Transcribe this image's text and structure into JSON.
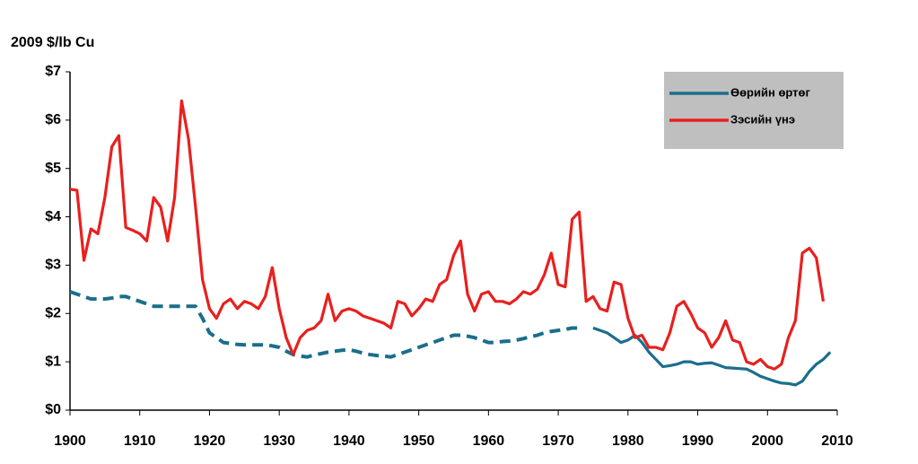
{
  "chart_data": {
    "type": "line",
    "title": "2009 $/lb Cu",
    "x": [
      1900,
      1901,
      1902,
      1903,
      1904,
      1905,
      1906,
      1907,
      1908,
      1909,
      1910,
      1911,
      1912,
      1913,
      1914,
      1915,
      1916,
      1917,
      1918,
      1919,
      1920,
      1921,
      1922,
      1923,
      1924,
      1925,
      1926,
      1927,
      1928,
      1929,
      1930,
      1931,
      1932,
      1933,
      1934,
      1935,
      1936,
      1937,
      1938,
      1939,
      1940,
      1941,
      1942,
      1943,
      1944,
      1945,
      1946,
      1947,
      1948,
      1949,
      1950,
      1951,
      1952,
      1953,
      1954,
      1955,
      1956,
      1957,
      1958,
      1959,
      1960,
      1961,
      1962,
      1963,
      1964,
      1965,
      1966,
      1967,
      1968,
      1969,
      1970,
      1971,
      1972,
      1973,
      1974,
      1975,
      1976,
      1977,
      1978,
      1979,
      1980,
      1981,
      1982,
      1983,
      1984,
      1985,
      1986,
      1987,
      1988,
      1989,
      1990,
      1991,
      1992,
      1993,
      1994,
      1995,
      1996,
      1997,
      1998,
      1999,
      2000,
      2001,
      2002,
      2003,
      2004,
      2005,
      2006,
      2007,
      2008,
      2009
    ],
    "series": [
      {
        "name": "Өөрийн өртөг",
        "color": "#1b6e8c",
        "dashed_until": 1973,
        "values": [
          2.45,
          2.4,
          2.35,
          2.3,
          2.3,
          2.3,
          2.32,
          2.35,
          2.35,
          2.3,
          2.25,
          2.2,
          2.15,
          2.15,
          2.15,
          2.15,
          2.15,
          2.15,
          2.15,
          1.9,
          1.6,
          1.5,
          1.4,
          1.38,
          1.36,
          1.35,
          1.35,
          1.35,
          1.35,
          1.33,
          1.3,
          1.22,
          1.15,
          1.12,
          1.1,
          1.14,
          1.17,
          1.2,
          1.22,
          1.24,
          1.25,
          1.22,
          1.18,
          1.15,
          1.13,
          1.12,
          1.1,
          1.15,
          1.2,
          1.25,
          1.3,
          1.35,
          1.4,
          1.45,
          1.5,
          1.55,
          1.55,
          1.53,
          1.5,
          1.45,
          1.4,
          1.4,
          1.42,
          1.43,
          1.45,
          1.48,
          1.52,
          1.55,
          1.6,
          1.63,
          1.65,
          1.67,
          1.7,
          1.7,
          null,
          1.7,
          1.65,
          1.6,
          1.5,
          1.4,
          1.45,
          1.55,
          1.4,
          1.2,
          1.05,
          0.9,
          0.92,
          0.95,
          1.0,
          1.0,
          0.95,
          0.97,
          0.98,
          0.93,
          0.88,
          0.87,
          0.86,
          0.85,
          0.78,
          0.7,
          0.65,
          0.6,
          0.56,
          0.55,
          0.52,
          0.6,
          0.8,
          0.95,
          1.05,
          1.2
        ]
      },
      {
        "name": "Зэсийн үнэ",
        "color": "#e8201e",
        "values": [
          4.57,
          4.55,
          3.1,
          3.75,
          3.65,
          4.4,
          5.45,
          5.68,
          3.78,
          3.72,
          3.65,
          3.5,
          4.4,
          4.2,
          3.5,
          4.4,
          6.4,
          5.6,
          4.2,
          2.7,
          2.1,
          1.9,
          2.2,
          2.3,
          2.1,
          2.25,
          2.2,
          2.1,
          2.35,
          2.95,
          2.1,
          1.5,
          1.15,
          1.5,
          1.65,
          1.7,
          1.85,
          2.4,
          1.85,
          2.05,
          2.1,
          2.05,
          1.95,
          1.9,
          1.85,
          1.8,
          1.7,
          2.25,
          2.2,
          1.95,
          2.1,
          2.3,
          2.25,
          2.6,
          2.7,
          3.2,
          3.5,
          2.4,
          2.05,
          2.4,
          2.45,
          2.25,
          2.25,
          2.2,
          2.3,
          2.45,
          2.4,
          2.5,
          2.8,
          3.25,
          2.6,
          2.55,
          3.95,
          4.1,
          2.25,
          2.35,
          2.1,
          2.05,
          2.65,
          2.6,
          1.9,
          1.5,
          1.55,
          1.3,
          1.3,
          1.25,
          1.6,
          2.15,
          2.25,
          2.0,
          1.7,
          1.6,
          1.3,
          1.5,
          1.85,
          1.45,
          1.4,
          1.0,
          0.95,
          1.05,
          0.9,
          0.85,
          0.95,
          1.5,
          1.85,
          3.25,
          3.35,
          3.15,
          2.25,
          null
        ]
      }
    ],
    "xlim": [
      1900,
      2010
    ],
    "xticks": [
      1900,
      1910,
      1920,
      1930,
      1940,
      1950,
      1960,
      1970,
      1980,
      1990,
      2000,
      2010
    ],
    "ylim": [
      0,
      7
    ],
    "yticks": [
      {
        "value": 0,
        "label": "$0"
      },
      {
        "value": 1,
        "label": "$1"
      },
      {
        "value": 2,
        "label": "$2"
      },
      {
        "value": 3,
        "label": "$3"
      },
      {
        "value": 4,
        "label": "$4"
      },
      {
        "value": 5,
        "label": "$5"
      },
      {
        "value": 6,
        "label": "$6"
      },
      {
        "value": 7,
        "label": "$7"
      }
    ],
    "legend": "top-right"
  }
}
